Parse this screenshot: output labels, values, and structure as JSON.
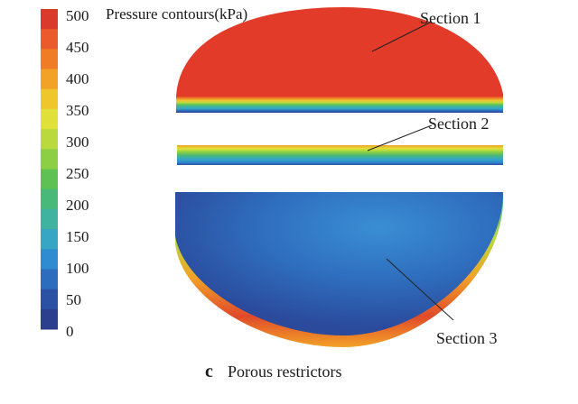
{
  "figure": {
    "legend_title": "Pressure contours(kPa)",
    "legend_ticks": [
      "500",
      "450",
      "400",
      "350",
      "300",
      "250",
      "200",
      "150",
      "100",
      "50",
      "0"
    ],
    "legend_colors": [
      "#d93a2b",
      "#ea5a2a",
      "#f07c25",
      "#f2a227",
      "#efc62b",
      "#dfe13a",
      "#b9d93e",
      "#8ccf44",
      "#5dc253",
      "#49b97a",
      "#3fb3a0",
      "#36a6c4",
      "#2f8cd0",
      "#2c6dbe",
      "#2b51a4",
      "#2c3e8e"
    ],
    "sections": [
      {
        "label": "Section 1"
      },
      {
        "label": "Section 2"
      },
      {
        "label": "Section 3"
      }
    ],
    "caption": {
      "letter": "c",
      "text": "Porous restrictors"
    }
  }
}
